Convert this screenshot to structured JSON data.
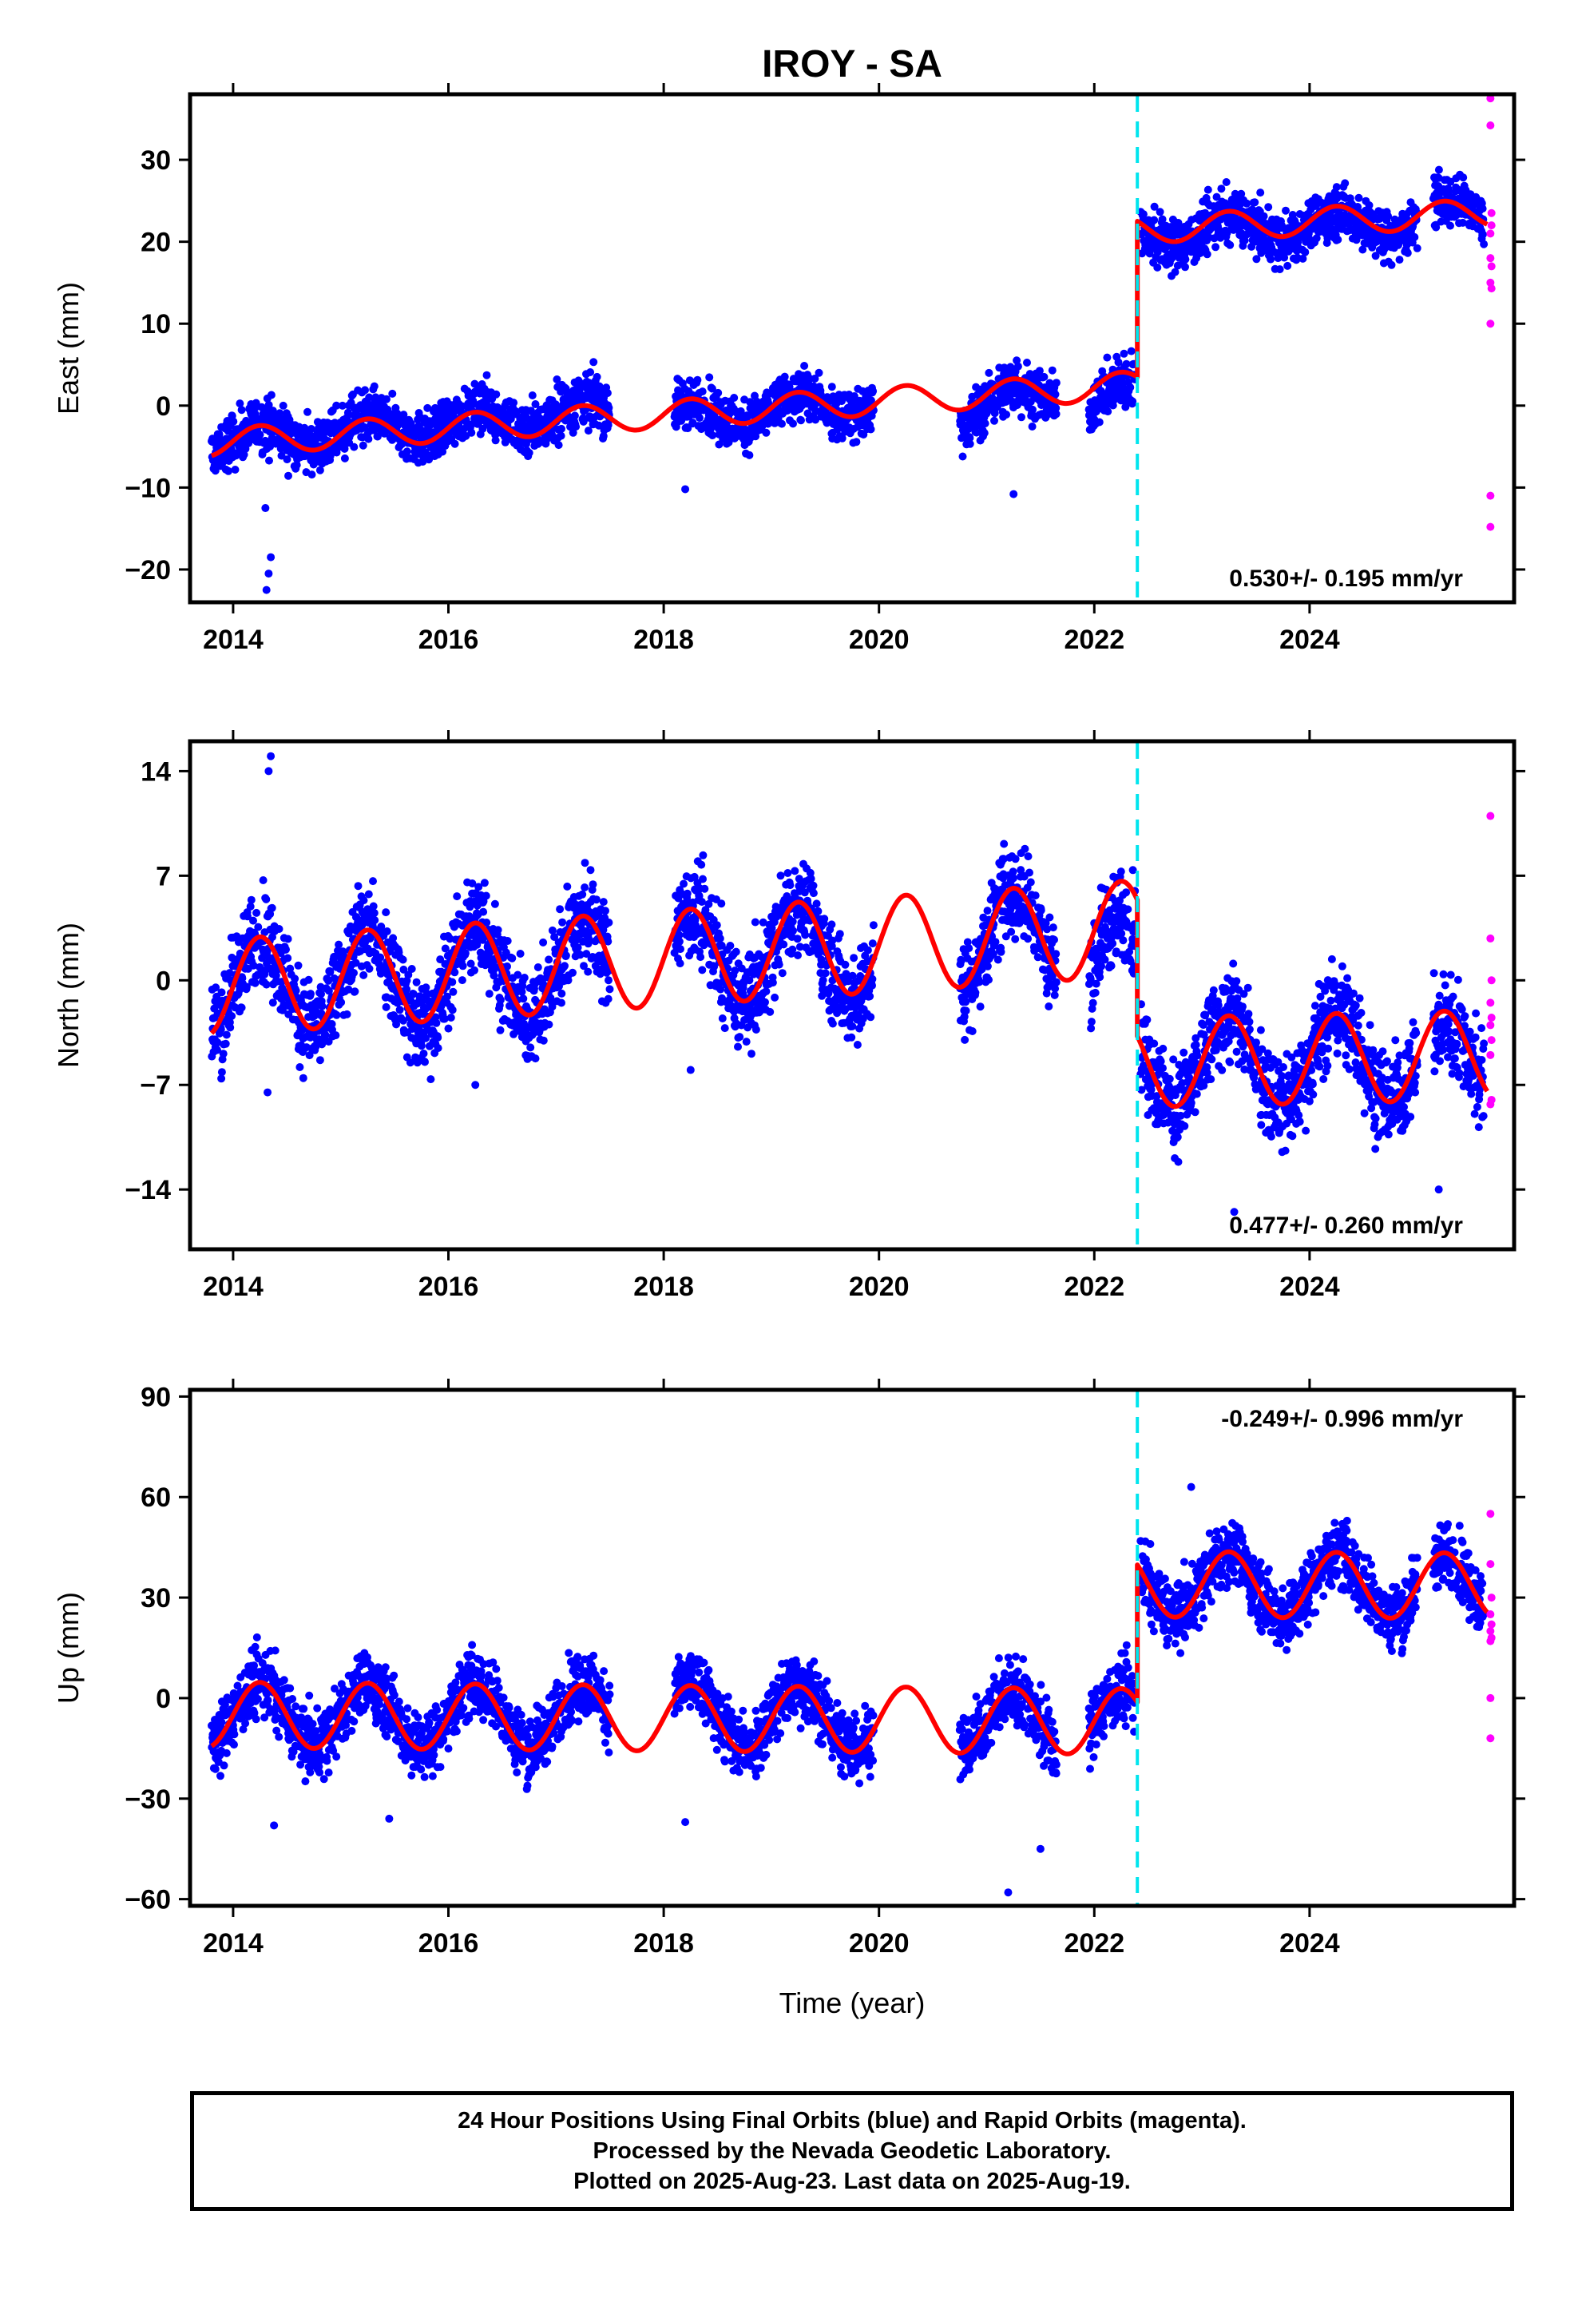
{
  "title": "IROY - SA",
  "xlabel": "Time (year)",
  "footer": {
    "line1": "24 Hour Positions Using Final Orbits (blue) and Rapid Orbits (magenta).",
    "line2": "Processed by the Nevada Geodetic Laboratory.",
    "line3": "Plotted on 2025-Aug-23. Last data on 2025-Aug-19."
  },
  "colors": {
    "final": "#0000ff",
    "rapid": "#ff00ff",
    "model": "#ff0000",
    "event": "#00e5ee"
  },
  "chart_data": [
    {
      "type": "scatter",
      "ylabel": "East (mm)",
      "rate_label": "0.530+/- 0.195 mm/yr",
      "rate_position": "bottom-right",
      "xlim": [
        2013.6,
        2025.9
      ],
      "ylim": [
        -24,
        38
      ],
      "xticks": [
        2014,
        2016,
        2018,
        2020,
        2022,
        2024
      ],
      "yticks": [
        -20,
        -10,
        0,
        10,
        20,
        30
      ],
      "event_x": 2022.4,
      "series": [
        {
          "kind": "points",
          "segments": [
            {
              "x0": 2013.8,
              "x1": 2017.5,
              "y0": -4.5,
              "y1": -0.5,
              "amp": 1.6,
              "noise": 1.6
            },
            {
              "x0": 2018.1,
              "x1": 2019.95,
              "y0": -1.5,
              "y1": 0.5,
              "amp": 1.6,
              "noise": 1.6
            },
            {
              "x0": 2020.75,
              "x1": 2021.65,
              "y0": -0.5,
              "y1": 1.5,
              "amp": 1.6,
              "noise": 1.6
            },
            {
              "x0": 2021.95,
              "x1": 2022.38,
              "y0": 0.0,
              "y1": 2.0,
              "amp": 1.6,
              "noise": 1.6
            },
            {
              "x0": 2022.43,
              "x1": 2025.0,
              "y0": 21.0,
              "y1": 22.5,
              "amp": 1.6,
              "noise": 1.6
            },
            {
              "x0": 2025.15,
              "x1": 2025.62,
              "y0": 23.5,
              "y1": 24.0,
              "amp": 1.6,
              "noise": 1.6
            }
          ],
          "outliers": [
            [
              2014.3,
              -12.5
            ],
            [
              2014.35,
              -18.5
            ],
            [
              2014.33,
              -20.5
            ],
            [
              2014.31,
              -22.5
            ],
            [
              2018.2,
              -10.2
            ],
            [
              2021.25,
              -10.8
            ]
          ]
        },
        {
          "kind": "rapid",
          "points": [
            [
              2025.68,
              37.5
            ],
            [
              2025.68,
              34.2
            ],
            [
              2025.69,
              23.5
            ],
            [
              2025.69,
              22.0
            ],
            [
              2025.68,
              21.0
            ],
            [
              2025.68,
              18.0
            ],
            [
              2025.69,
              17.0
            ],
            [
              2025.68,
              15.0
            ],
            [
              2025.69,
              14.3
            ],
            [
              2025.68,
              10.0
            ],
            [
              2025.68,
              -11.0
            ],
            [
              2025.68,
              -14.8
            ]
          ]
        },
        {
          "kind": "model",
          "pre": {
            "y0": -4.5,
            "y1": 2.5,
            "amp": 1.7
          },
          "post": {
            "y0": 21.5,
            "y1": 23.5,
            "amp": 1.7
          }
        }
      ]
    },
    {
      "type": "scatter",
      "ylabel": "North (mm)",
      "rate_label": "0.477+/- 0.260 mm/yr",
      "rate_position": "bottom-right",
      "xlim": [
        2013.6,
        2025.9
      ],
      "ylim": [
        -18,
        16
      ],
      "xticks": [
        2014,
        2016,
        2018,
        2020,
        2022,
        2024
      ],
      "yticks": [
        -14,
        -7,
        0,
        7,
        14
      ],
      "event_x": 2022.4,
      "series": [
        {
          "kind": "points",
          "segments": [
            {
              "x0": 2013.8,
              "x1": 2017.5,
              "y0": -0.5,
              "y1": 1.0,
              "amp": 3.2,
              "noise": 1.6
            },
            {
              "x0": 2018.1,
              "x1": 2019.95,
              "y0": 1.5,
              "y1": 2.0,
              "amp": 3.2,
              "noise": 1.6
            },
            {
              "x0": 2020.75,
              "x1": 2021.65,
              "y0": 2.5,
              "y1": 3.0,
              "amp": 3.2,
              "noise": 1.6
            },
            {
              "x0": 2021.95,
              "x1": 2022.38,
              "y0": 1.5,
              "y1": 1.0,
              "amp": 3.2,
              "noise": 1.6
            },
            {
              "x0": 2022.43,
              "x1": 2025.0,
              "y0": -5.5,
              "y1": -5.0,
              "amp": 3.0,
              "noise": 1.6
            },
            {
              "x0": 2025.15,
              "x1": 2025.62,
              "y0": -6.0,
              "y1": -5.0,
              "amp": 3.0,
              "noise": 1.6
            }
          ],
          "outliers": [
            [
              2014.35,
              15.0
            ],
            [
              2014.33,
              14.0
            ],
            [
              2014.32,
              -7.5
            ],
            [
              2016.25,
              -7.0
            ],
            [
              2018.25,
              -6.0
            ],
            [
              2018.22,
              5.8
            ],
            [
              2023.3,
              -15.5
            ],
            [
              2025.2,
              -14.0
            ]
          ]
        },
        {
          "kind": "rapid",
          "points": [
            [
              2025.68,
              11.0
            ],
            [
              2025.68,
              2.8
            ],
            [
              2025.69,
              0.0
            ],
            [
              2025.68,
              -1.5
            ],
            [
              2025.69,
              -2.5
            ],
            [
              2025.68,
              -3.0
            ],
            [
              2025.69,
              -4.0
            ],
            [
              2025.68,
              -5.0
            ],
            [
              2025.69,
              -8.0
            ],
            [
              2025.68,
              -8.3
            ]
          ]
        },
        {
          "kind": "model",
          "pre": {
            "y0": -0.5,
            "y1": 3.5,
            "amp": 3.2
          },
          "post": {
            "y0": -5.5,
            "y1": -5.0,
            "amp": 3.0
          }
        }
      ]
    },
    {
      "type": "scatter",
      "ylabel": "Up (mm)",
      "rate_label": "-0.249+/- 0.996 mm/yr",
      "rate_position": "top-right",
      "xlim": [
        2013.6,
        2025.9
      ],
      "ylim": [
        -62,
        92
      ],
      "xticks": [
        2014,
        2016,
        2018,
        2020,
        2022,
        2024
      ],
      "yticks": [
        -60,
        -30,
        0,
        30,
        60,
        90
      ],
      "event_x": 2022.4,
      "series": [
        {
          "kind": "points",
          "segments": [
            {
              "x0": 2013.8,
              "x1": 2017.5,
              "y0": -5.0,
              "y1": -5.0,
              "amp": 9.5,
              "noise": 5.0
            },
            {
              "x0": 2018.1,
              "x1": 2019.95,
              "y0": -5.0,
              "y1": -5.5,
              "amp": 9.5,
              "noise": 5.0
            },
            {
              "x0": 2020.75,
              "x1": 2021.65,
              "y0": -6.0,
              "y1": -8.0,
              "amp": 9.5,
              "noise": 5.0
            },
            {
              "x0": 2021.95,
              "x1": 2022.38,
              "y0": -7.0,
              "y1": -7.0,
              "amp": 9.5,
              "noise": 5.0
            },
            {
              "x0": 2022.43,
              "x1": 2025.0,
              "y0": 34.0,
              "y1": 33.5,
              "amp": 9.5,
              "noise": 5.0
            },
            {
              "x0": 2025.15,
              "x1": 2025.62,
              "y0": 33.5,
              "y1": 33.5,
              "amp": 9.5,
              "noise": 5.0
            }
          ],
          "outliers": [
            [
              2014.38,
              -38.0
            ],
            [
              2015.45,
              -36.0
            ],
            [
              2018.2,
              -37.0
            ],
            [
              2021.2,
              -58.0
            ],
            [
              2021.5,
              -45.0
            ],
            [
              2022.9,
              63.0
            ]
          ]
        },
        {
          "kind": "rapid",
          "points": [
            [
              2025.68,
              55.0
            ],
            [
              2025.68,
              40.0
            ],
            [
              2025.69,
              30.0
            ],
            [
              2025.68,
              25.0
            ],
            [
              2025.69,
              22.0
            ],
            [
              2025.68,
              20.0
            ],
            [
              2025.69,
              18.0
            ],
            [
              2025.68,
              17.0
            ],
            [
              2025.68,
              0.0
            ],
            [
              2025.68,
              -12.0
            ]
          ]
        },
        {
          "kind": "model",
          "pre": {
            "y0": -5.0,
            "y1": -7.0,
            "amp": 9.8
          },
          "post": {
            "y0": 34.0,
            "y1": 33.5,
            "amp": 9.8
          }
        }
      ]
    }
  ]
}
